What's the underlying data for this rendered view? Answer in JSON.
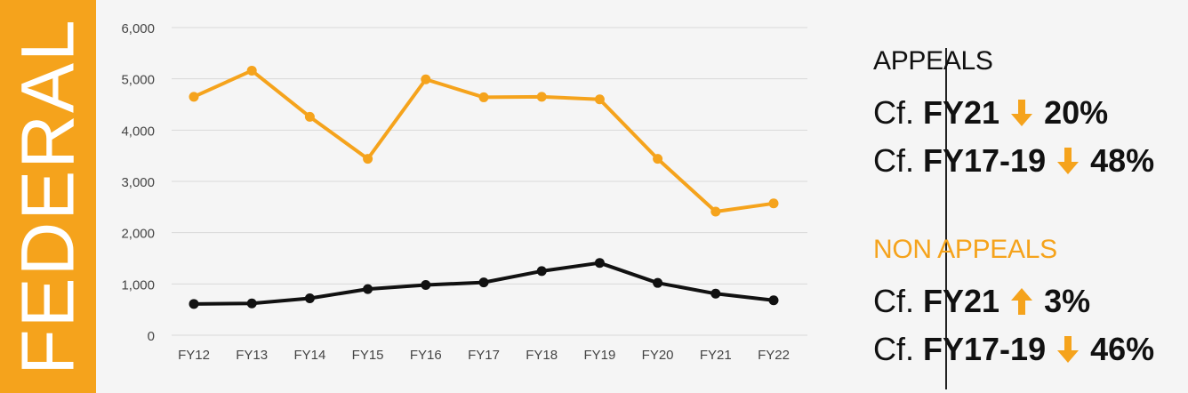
{
  "side_label": "FEDERAL",
  "colors": {
    "accent": "#f5a31c",
    "dark": "#111111",
    "panel": "#f5f5f5"
  },
  "chart_data": {
    "type": "line",
    "categories": [
      "FY12",
      "FY13",
      "FY14",
      "FY15",
      "FY16",
      "FY17",
      "FY18",
      "FY19",
      "FY20",
      "FY21",
      "FY22"
    ],
    "series": [
      {
        "color": "#f5a31c",
        "values": [
          4650,
          5160,
          4260,
          3440,
          4990,
          4640,
          4650,
          4600,
          3440,
          2410,
          2570
        ]
      },
      {
        "color": "#111111",
        "values": [
          610,
          620,
          720,
          900,
          980,
          1030,
          1250,
          1410,
          1020,
          810,
          680
        ]
      }
    ],
    "yticks": [
      0,
      1000,
      2000,
      3000,
      4000,
      5000,
      6000
    ],
    "ytick_labels": [
      "0",
      "1,000",
      "2,000",
      "3,000",
      "4,000",
      "5,000",
      "6,000"
    ],
    "ylim": [
      0,
      6000
    ],
    "grid": true
  },
  "stats": {
    "appeals": {
      "heading": "APPEALS",
      "rows": [
        {
          "prefix": "Cf.",
          "period": "FY21",
          "direction": "down",
          "change": "20%"
        },
        {
          "prefix": "Cf.",
          "period": "FY17-19",
          "direction": "down",
          "change": "48%"
        }
      ]
    },
    "non_appeals": {
      "heading": "NON APPEALS",
      "rows": [
        {
          "prefix": "Cf.",
          "period": "FY21",
          "direction": "up",
          "change": "3%"
        },
        {
          "prefix": "Cf.",
          "period": "FY17-19",
          "direction": "down",
          "change": "46%"
        }
      ]
    }
  }
}
